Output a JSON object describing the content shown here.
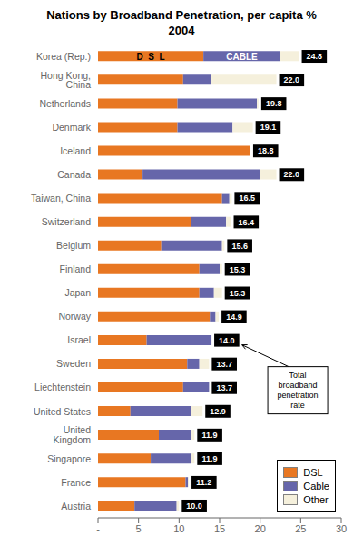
{
  "chart_data": {
    "type": "bar",
    "orientation": "horizontal",
    "stacked": true,
    "title": "Nations by Broadband Penetration, per capita %\n2004",
    "categories": [
      "Korea (Rep.)",
      "Hong Kong, China",
      "Netherlands",
      "Denmark",
      "Iceland",
      "Canada",
      "Taiwan, China",
      "Switzerland",
      "Belgium",
      "Finland",
      "Japan",
      "Norway",
      "Israel",
      "Sweden",
      "Liechtenstein",
      "United States",
      "United Kingdom",
      "Singapore",
      "France",
      "Austria"
    ],
    "series": [
      {
        "name": "DSL",
        "color": "#E87722",
        "values": [
          13.0,
          10.5,
          9.8,
          9.8,
          18.8,
          5.5,
          15.3,
          11.5,
          7.8,
          12.5,
          12.5,
          13.8,
          6.0,
          11.0,
          10.5,
          4.0,
          7.5,
          6.5,
          10.8,
          4.5
        ]
      },
      {
        "name": "Cable",
        "color": "#6666AA",
        "values": [
          9.5,
          3.5,
          9.8,
          6.8,
          0.0,
          14.5,
          0.9,
          4.3,
          7.5,
          2.5,
          1.8,
          0.7,
          8.0,
          1.5,
          3.2,
          7.5,
          4.0,
          5.0,
          0.3,
          5.2
        ]
      },
      {
        "name": "Other",
        "color": "#F5F0DC",
        "values": [
          2.3,
          8.0,
          0.2,
          2.5,
          0.0,
          2.0,
          0.3,
          0.6,
          0.3,
          0.3,
          1.0,
          0.4,
          0.0,
          1.2,
          0.0,
          1.4,
          0.4,
          0.4,
          0.1,
          0.3
        ]
      }
    ],
    "totals": [
      24.8,
      22.0,
      19.8,
      19.1,
      18.8,
      22.0,
      16.5,
      16.4,
      15.6,
      15.3,
      15.3,
      14.9,
      14.0,
      13.7,
      13.7,
      12.9,
      11.9,
      11.9,
      11.2,
      10.0
    ],
    "total_labels": [
      "24.8",
      "22.0",
      "19.8",
      "19.1",
      "18.8",
      "22.0",
      "16.5",
      "16.4",
      "15.6",
      "15.3",
      "15.3",
      "14.9",
      "14.0",
      "13.7",
      "13.7",
      "12.9",
      "11.9",
      "11.9",
      "11.2",
      "10.0"
    ],
    "xlim": [
      0,
      30
    ],
    "xticks": [
      {
        "value": 0,
        "label": "-"
      },
      5,
      10,
      15,
      20,
      25,
      30
    ],
    "grid": false,
    "legend": "lower right",
    "annotations": [
      {
        "text": "D  S  L",
        "category": "Korea (Rep.)",
        "series": "DSL"
      },
      {
        "text": "CABLE",
        "category": "Korea (Rep.)",
        "series": "Cable"
      },
      {
        "text": "Total\nbroadband\npenetration\nrate",
        "category": "Israel"
      }
    ]
  }
}
